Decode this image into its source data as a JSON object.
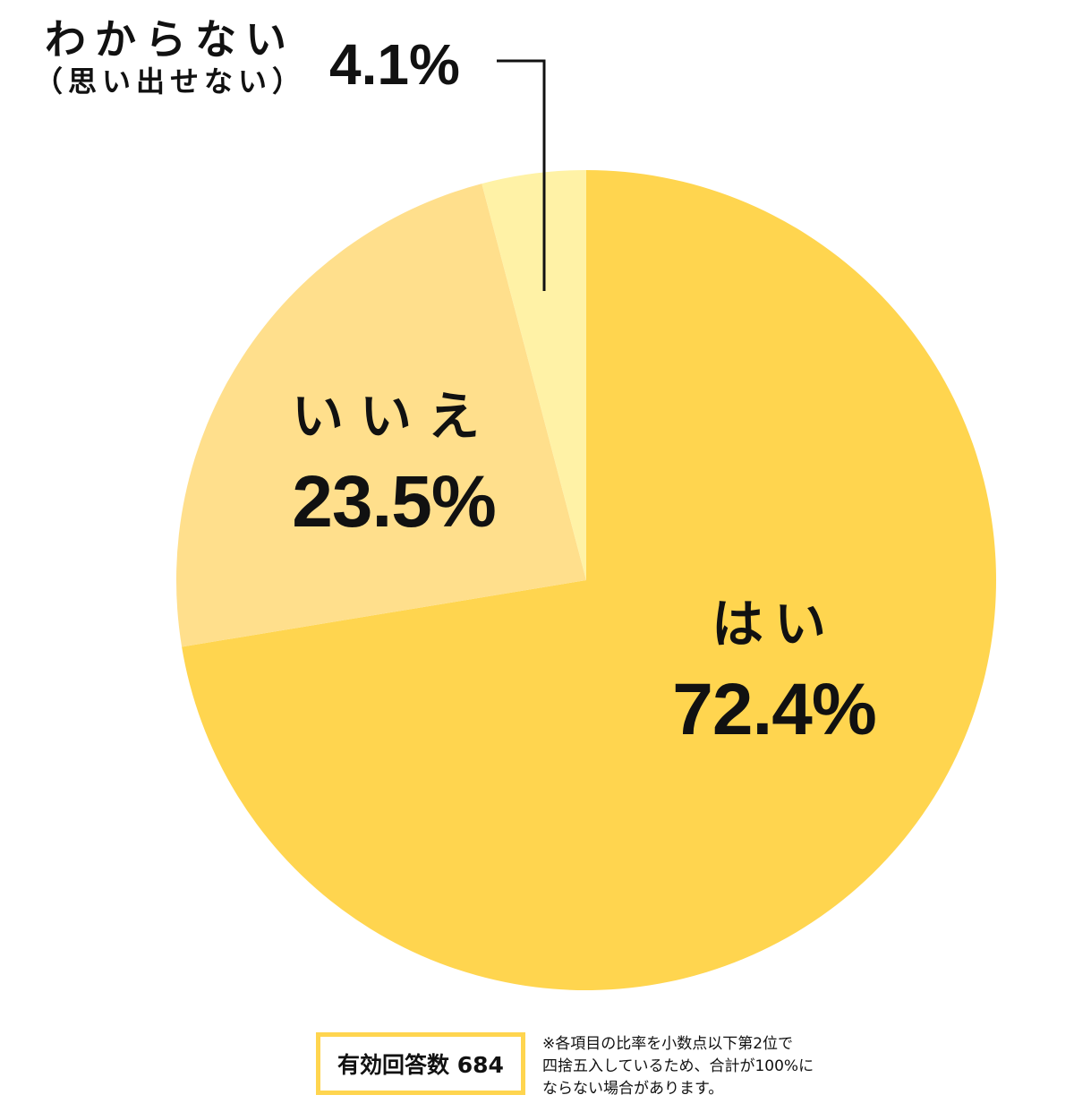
{
  "chart_data": {
    "type": "pie",
    "title": "",
    "start_angle_deg": 0,
    "direction": "clockwise",
    "slices": [
      {
        "label": "はい",
        "value": 72.4,
        "display": "72.4%",
        "color": "#FFD54F"
      },
      {
        "label": "いいえ",
        "value": 23.5,
        "display": "23.5%",
        "color": "#FFDF8C"
      },
      {
        "label": "わからない（思い出せない）",
        "value": 4.1,
        "display": "4.1%",
        "color": "#FFF2A6"
      }
    ],
    "center": [
      655,
      648
    ],
    "radius": 458,
    "valid_responses": 684
  },
  "labels": {
    "yes": {
      "name": "はい",
      "pct": "72.4%"
    },
    "no": {
      "name": "いいえ",
      "pct": "23.5%"
    },
    "dontknow": {
      "line1": "わからない",
      "line2": "（思い出せない）",
      "pct": "4.1%"
    }
  },
  "footer": {
    "responses_label": "有効回答数 684",
    "note_lines": [
      "※各項目の比率を小数点以下第2位で",
      "四捨五入しているため、合計が100%に",
      "ならない場合があります。"
    ],
    "box_border_color": "#FFD54F"
  }
}
